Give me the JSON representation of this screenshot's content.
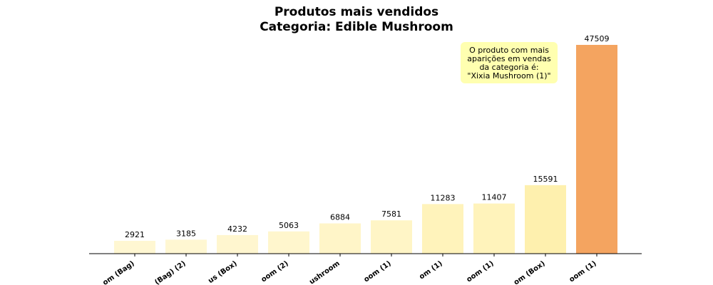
{
  "chart_data": {
    "type": "bar",
    "title_lines": [
      "Produtos mais vendidos",
      "Categoria: Edible Mushroom"
    ],
    "categories": [
      "om (Bag)",
      "(Bag) (2)",
      "us (Box)",
      "oom (2)",
      "ushroom",
      "oom (1)",
      "om (1)",
      "oom (1)",
      "om (Box)",
      "oom (1)"
    ],
    "values": [
      2921,
      3185,
      4232,
      5063,
      6884,
      7581,
      11283,
      11407,
      15591,
      47509
    ],
    "colors": [
      "#fff7d2",
      "#fff7d2",
      "#fff6cf",
      "#fff6cd",
      "#fff5c8",
      "#fff5c6",
      "#fff3bb",
      "#fff3bb",
      "#fef0ae",
      "#f4a460"
    ],
    "ylim": [
      0,
      47509
    ],
    "grid": false,
    "annotation": {
      "lines": [
        "O produto com mais",
        "aparições em vendas",
        "da categoria é:",
        "\"Xixia Mushroom (1)\""
      ],
      "background": "#ffffb0"
    }
  }
}
